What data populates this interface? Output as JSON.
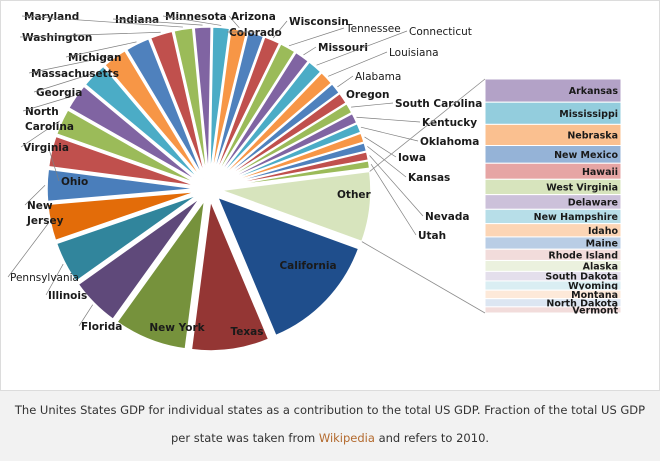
{
  "chart_data": {
    "type": "pie",
    "title": "",
    "main_pie": [
      {
        "label": "California",
        "value": 13.0,
        "color": "#1f4e8c",
        "bold": true,
        "label_inside": true
      },
      {
        "label": "Texas",
        "value": 8.3,
        "color": "#943634",
        "bold": true,
        "label_inside": true
      },
      {
        "label": "New York",
        "value": 7.8,
        "color": "#76923c",
        "bold": true,
        "label_inside": true
      },
      {
        "label": "Florida",
        "value": 5.2,
        "color": "#5f497a",
        "bold": true
      },
      {
        "label": "Illinois",
        "value": 4.5,
        "color": "#31859c",
        "bold": true
      },
      {
        "label": "Pennsylvania",
        "value": 3.9,
        "color": "#e36c09",
        "bold": false
      },
      {
        "label": "New Jersey",
        "value": 3.4,
        "color": "#4a7ebb",
        "bold": true
      },
      {
        "label": "Ohio",
        "value": 3.3,
        "color": "#c0504d",
        "bold": true
      },
      {
        "label": "Virginia",
        "value": 2.8,
        "color": "#9bbb59",
        "bold": true
      },
      {
        "label": "North Carolina",
        "value": 2.8,
        "color": "#8064a2",
        "bold": true
      },
      {
        "label": "Georgia",
        "value": 2.7,
        "color": "#4bacc6",
        "bold": true
      },
      {
        "label": "Massachusetts",
        "value": 2.6,
        "color": "#f79646",
        "bold": true
      },
      {
        "label": "Michigan",
        "value": 2.6,
        "color": "#4f81bd",
        "bold": true
      },
      {
        "label": "Washington",
        "value": 2.4,
        "color": "#c0504d",
        "bold": true
      },
      {
        "label": "Maryland",
        "value": 2.0,
        "color": "#9bbb59",
        "bold": true
      },
      {
        "label": "Indiana",
        "value": 1.8,
        "color": "#8064a2",
        "bold": true
      },
      {
        "label": "Minnesota",
        "value": 1.8,
        "color": "#4bacc6",
        "bold": true
      },
      {
        "label": "Arizona",
        "value": 1.7,
        "color": "#f79646",
        "bold": true
      },
      {
        "label": "Colorado",
        "value": 1.7,
        "color": "#4f81bd",
        "bold": true
      },
      {
        "label": "Wisconsin",
        "value": 1.7,
        "color": "#c0504d",
        "bold": true
      },
      {
        "label": "Tennessee",
        "value": 1.7,
        "color": "#9bbb59",
        "bold": false
      },
      {
        "label": "Missouri",
        "value": 1.6,
        "color": "#8064a2",
        "bold": true
      },
      {
        "label": "Connecticut",
        "value": 1.6,
        "color": "#4bacc6",
        "bold": false
      },
      {
        "label": "Louisiana",
        "value": 1.5,
        "color": "#f79646",
        "bold": false
      },
      {
        "label": "Alabama",
        "value": 1.2,
        "color": "#4f81bd",
        "bold": false
      },
      {
        "label": "Oregon",
        "value": 1.2,
        "color": "#c0504d",
        "bold": true
      },
      {
        "label": "South Carolina",
        "value": 1.1,
        "color": "#9bbb59",
        "bold": true
      },
      {
        "label": "Kentucky",
        "value": 1.1,
        "color": "#8064a2",
        "bold": true
      },
      {
        "label": "Oklahoma",
        "value": 1.0,
        "color": "#4bacc6",
        "bold": true
      },
      {
        "label": "Iowa",
        "value": 1.0,
        "color": "#f79646",
        "bold": true
      },
      {
        "label": "Kansas",
        "value": 0.9,
        "color": "#4f81bd",
        "bold": true
      },
      {
        "label": "Nevada",
        "value": 0.9,
        "color": "#c0504d",
        "bold": true
      },
      {
        "label": "Utah",
        "value": 0.8,
        "color": "#9bbb59",
        "bold": true
      },
      {
        "label": "Other",
        "value": 7.5,
        "color": "#d7e4bd",
        "bold": true,
        "label_inside": true
      }
    ],
    "other_breakdown": [
      {
        "label": "Arkansas",
        "value": 0.68,
        "color": "#b3a2c7"
      },
      {
        "label": "Mississippi",
        "value": 0.65,
        "color": "#93cddd"
      },
      {
        "label": "Nebraska",
        "value": 0.62,
        "color": "#fac090"
      },
      {
        "label": "New Mexico",
        "value": 0.52,
        "color": "#95b3d7"
      },
      {
        "label": "Hawaii",
        "value": 0.47,
        "color": "#e6a5a4"
      },
      {
        "label": "West Virginia",
        "value": 0.45,
        "color": "#d7e4bd"
      },
      {
        "label": "Delaware",
        "value": 0.43,
        "color": "#ccc1da"
      },
      {
        "label": "New Hampshire",
        "value": 0.42,
        "color": "#b7dee8"
      },
      {
        "label": "Idaho",
        "value": 0.39,
        "color": "#fcd5b5"
      },
      {
        "label": "Maine",
        "value": 0.36,
        "color": "#b9cde5"
      },
      {
        "label": "Rhode Island",
        "value": 0.33,
        "color": "#f2dcdb"
      },
      {
        "label": "Alaska",
        "value": 0.32,
        "color": "#ebf1de"
      },
      {
        "label": "South Dakota",
        "value": 0.28,
        "color": "#e4dfec"
      },
      {
        "label": "Wyoming",
        "value": 0.27,
        "color": "#daeef3"
      },
      {
        "label": "Montana",
        "value": 0.25,
        "color": "#fde9d9"
      },
      {
        "label": "North Dakota",
        "value": 0.24,
        "color": "#dce6f2"
      },
      {
        "label": "Vermont",
        "value": 0.18,
        "color": "#f2dcdb"
      }
    ]
  },
  "caption": {
    "line1": "The Unites States GDP for individual states as a contribution to the total US GDP. Fraction of the total US GDP",
    "line2_before": "per state was taken from ",
    "line2_link": "Wikipedia",
    "line2_after": " and refers to 2010."
  }
}
